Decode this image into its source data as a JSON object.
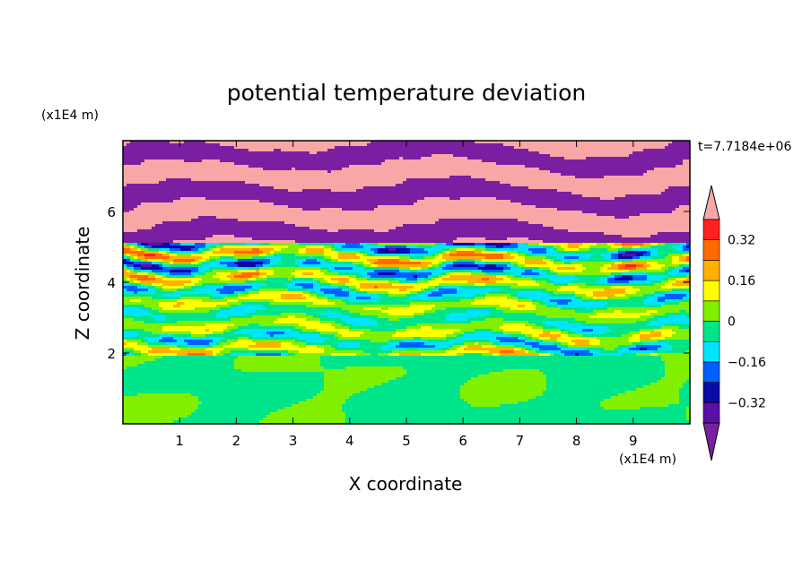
{
  "chart_data": {
    "type": "heatmap",
    "title": "potential temperature deviation",
    "xlabel": "X coordinate",
    "ylabel": "Z coordinate",
    "x_unit": "(x1E4 m)",
    "y_unit": "(x1E4 m)",
    "time_label": "t=7.7184e+06",
    "xlim": [
      0,
      10
    ],
    "ylim": [
      0,
      8
    ],
    "x_ticks": [
      1,
      2,
      3,
      4,
      5,
      6,
      7,
      8,
      9
    ],
    "y_ticks": [
      2,
      4,
      6
    ],
    "grid": false,
    "legend_placement": "right",
    "colorbar": {
      "levels": [
        -0.4,
        -0.32,
        -0.24,
        -0.16,
        -0.08,
        0,
        0.08,
        0.16,
        0.24,
        0.32,
        0.4
      ],
      "tick_labels": [
        "0.32",
        "0.16",
        "0",
        "−0.16",
        "−0.32"
      ],
      "tick_values": [
        0.32,
        0.16,
        0,
        -0.16,
        -0.32
      ],
      "colors": [
        "#7a1fa2",
        "#5a0fa6",
        "#0a0aa6",
        "#0060ff",
        "#00e5ff",
        "#00e58a",
        "#80f000",
        "#ffff00",
        "#ffb000",
        "#ff6a00",
        "#ff2020",
        "#f8a6a6"
      ],
      "extend": "both"
    },
    "regions": [
      {
        "z_range": [
          0,
          2
        ],
        "description_values": [
          -0.04,
          0.04
        ]
      },
      {
        "z_range": [
          2,
          5
        ],
        "description_values": [
          -0.4,
          0.4
        ]
      },
      {
        "z_range": [
          5,
          8
        ],
        "description_values": [
          -0.4,
          0.4
        ]
      }
    ]
  }
}
